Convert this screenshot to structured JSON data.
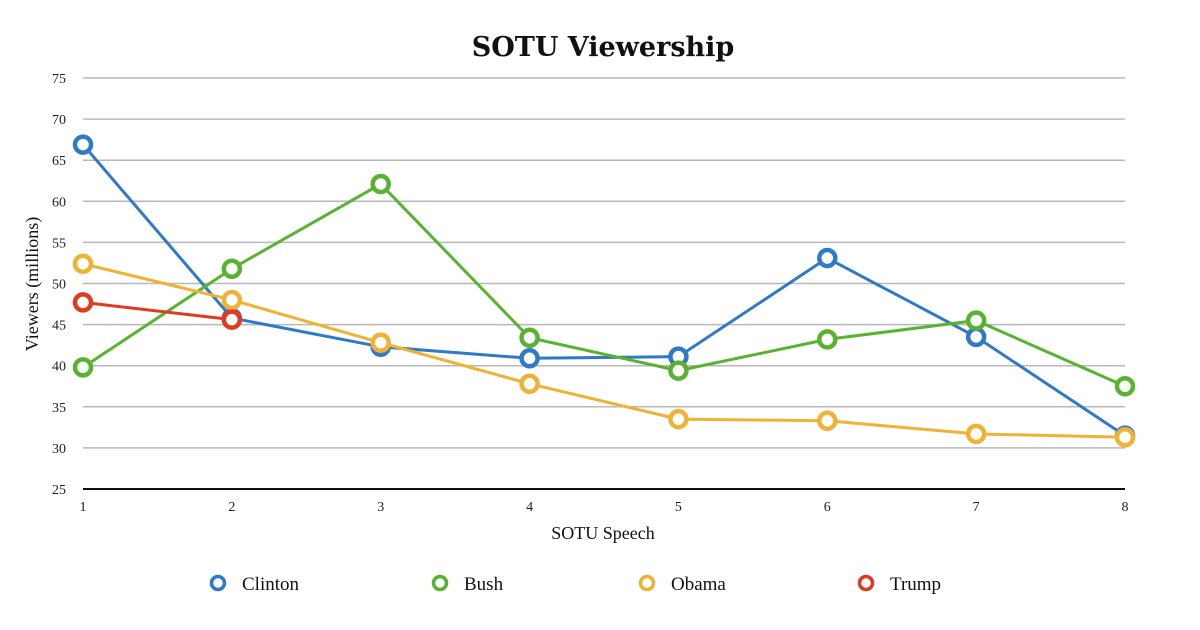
{
  "chart_data": {
    "type": "line",
    "title": "SOTU Viewership",
    "xlabel": "SOTU Speech",
    "ylabel": "Viewers (millions)",
    "x": [
      1,
      2,
      3,
      4,
      5,
      6,
      7,
      8
    ],
    "xticks": [
      "1",
      "2",
      "3",
      "4",
      "5",
      "6",
      "7",
      "8"
    ],
    "ylim": [
      25,
      75
    ],
    "yticks": [
      "25",
      "30",
      "35",
      "40",
      "45",
      "50",
      "55",
      "60",
      "65",
      "70",
      "75"
    ],
    "grid": true,
    "legend_position": "bottom",
    "series": [
      {
        "name": "Clinton",
        "color": "#2f7ac8",
        "values": [
          66.9,
          45.8,
          42.3,
          40.9,
          41.1,
          53.1,
          43.5,
          31.5
        ]
      },
      {
        "name": "Bush",
        "color": "#59b330",
        "values": [
          39.8,
          51.8,
          62.1,
          43.4,
          39.4,
          43.2,
          45.5,
          37.5
        ]
      },
      {
        "name": "Obama",
        "color": "#f0b234",
        "values": [
          52.4,
          48.0,
          42.8,
          37.8,
          33.5,
          33.3,
          31.7,
          31.3
        ]
      },
      {
        "name": "Trump",
        "color": "#e03a1f",
        "values": [
          47.7,
          45.6,
          null,
          null,
          null,
          null,
          null,
          null
        ]
      }
    ]
  }
}
